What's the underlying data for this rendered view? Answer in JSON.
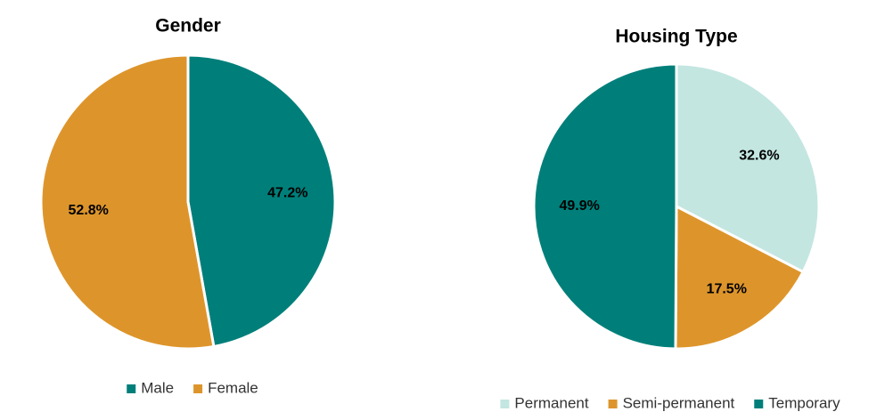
{
  "chart_data": [
    {
      "type": "pie",
      "title": "Gender",
      "categories": [
        "Male",
        "Female"
      ],
      "values": [
        47.2,
        52.8
      ],
      "value_labels": [
        "47.2%",
        "52.8%"
      ],
      "colors": [
        "#007f7a",
        "#dd952b"
      ],
      "legend": "bottom"
    },
    {
      "type": "pie",
      "title": "Housing Type",
      "categories": [
        "Permanent",
        "Semi-permanent",
        "Temporary"
      ],
      "values": [
        32.6,
        17.5,
        49.9
      ],
      "value_labels": [
        "32.6%",
        "17.5%",
        "49.9%"
      ],
      "colors": [
        "#c3e6e1",
        "#dd952b",
        "#007f7a"
      ],
      "legend": "bottom"
    }
  ]
}
